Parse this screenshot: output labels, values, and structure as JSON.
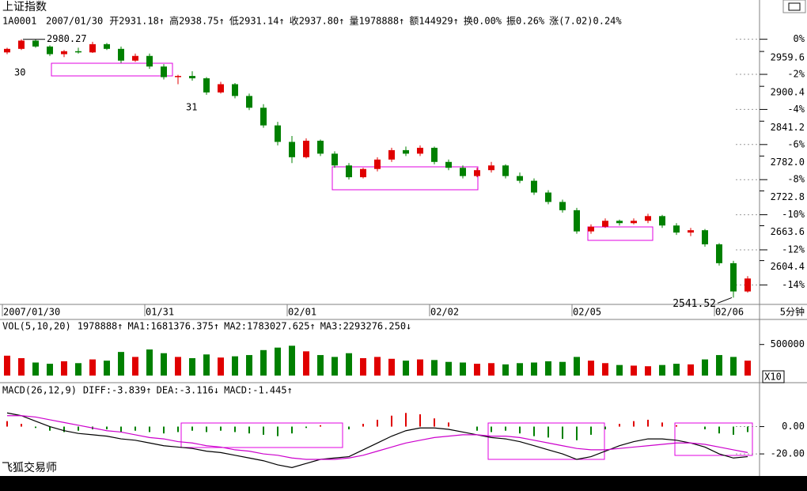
{
  "header": {
    "title": "上证指数",
    "code": "1A0001",
    "date": "2007/01/30",
    "fields": [
      "开2931.18↑",
      "高2938.75↑",
      "低2931.14↑",
      "收2937.80↑",
      "量1978888↑",
      "额144929↑",
      "换0.00%",
      "振0.26%",
      "涨(7.02)0.24%"
    ],
    "footer": "飞狐交易师"
  },
  "chart_data": [
    {
      "type": "candlestick",
      "categories": [
        "2007/01/30",
        null,
        null,
        null,
        null,
        null,
        null,
        null,
        null,
        null,
        "01/31",
        null,
        null,
        null,
        null,
        null,
        null,
        null,
        null,
        null,
        "02/01",
        null,
        null,
        null,
        null,
        null,
        null,
        null,
        null,
        null,
        "02/02",
        null,
        null,
        null,
        null,
        null,
        null,
        null,
        null,
        null,
        "02/05",
        null,
        null,
        null,
        null,
        null,
        null,
        null,
        null,
        null,
        "02/06",
        null,
        null
      ],
      "period": "5分钟",
      "annotations": [
        "30",
        "31"
      ],
      "open": [
        2958,
        2964,
        2978,
        2968,
        2955,
        2960,
        2958,
        2972,
        2964,
        2944,
        2952,
        2934,
        2916,
        2918,
        2914,
        2890,
        2904,
        2884,
        2864,
        2834,
        2806,
        2780,
        2808,
        2786,
        2766,
        2746,
        2760,
        2776,
        2792,
        2786,
        2796,
        2772,
        2762,
        2748,
        2758,
        2766,
        2748,
        2740,
        2720,
        2704,
        2690,
        2654,
        2662,
        2672,
        2668,
        2672,
        2680,
        2664,
        2652,
        2656,
        2632,
        2600,
        2552
      ],
      "high": [
        2966,
        2980.27,
        2980,
        2970,
        2962,
        2966,
        2976,
        2974,
        2968,
        2956,
        2956,
        2938,
        2920,
        2926,
        2916,
        2908,
        2906,
        2888,
        2870,
        2840,
        2816,
        2812,
        2810,
        2790,
        2770,
        2762,
        2780,
        2796,
        2798,
        2800,
        2798,
        2776,
        2766,
        2762,
        2772,
        2768,
        2754,
        2744,
        2724,
        2708,
        2694,
        2666,
        2676,
        2674,
        2676,
        2684,
        2682,
        2668,
        2660,
        2658,
        2634,
        2604,
        2578
      ],
      "low": [
        2955,
        2962,
        2966,
        2952,
        2950,
        2956,
        2957,
        2962,
        2940,
        2942,
        2930,
        2912,
        2904,
        2910,
        2886,
        2888,
        2880,
        2860,
        2830,
        2800,
        2770,
        2778,
        2782,
        2762,
        2742,
        2744,
        2756,
        2772,
        2782,
        2782,
        2768,
        2758,
        2744,
        2746,
        2754,
        2744,
        2736,
        2716,
        2700,
        2686,
        2650,
        2650,
        2660,
        2664,
        2666,
        2668,
        2660,
        2648,
        2646,
        2628,
        2596,
        2541.52,
        2550
      ],
      "close": [
        2964,
        2978,
        2968,
        2955,
        2960,
        2958,
        2972,
        2964,
        2944,
        2952,
        2934,
        2916,
        2918,
        2914,
        2890,
        2904,
        2884,
        2864,
        2834,
        2806,
        2780,
        2808,
        2786,
        2766,
        2746,
        2760,
        2776,
        2792,
        2786,
        2796,
        2772,
        2762,
        2748,
        2758,
        2766,
        2748,
        2740,
        2720,
        2704,
        2690,
        2654,
        2662,
        2672,
        2668,
        2672,
        2680,
        2664,
        2652,
        2656,
        2632,
        2600,
        2552,
        2574
      ],
      "up_color": "#e00000",
      "down_color": "#008000",
      "ylim": [
        2530,
        3000
      ],
      "yticks": [
        2959.6,
        2900.4,
        2841.2,
        {
          "value": 2782,
          "label": "2782.0"
        },
        2722.8,
        2663.6,
        2604.4
      ],
      "y2lim": [
        -15.11,
        0.66
      ],
      "y2ticks": [
        {
          "value": 0,
          "label": "0%"
        },
        {
          "value": -2,
          "label": "-2%"
        },
        {
          "value": -4,
          "label": "-4%"
        },
        {
          "value": -6,
          "label": "-6%"
        },
        {
          "value": -8,
          "label": "-8%"
        },
        {
          "value": -10,
          "label": "-10%"
        },
        {
          "value": -12,
          "label": "-12%"
        },
        {
          "value": -14,
          "label": "-14%"
        }
      ]
    },
    {
      "type": "bar",
      "title": "VOL(5,10,20)",
      "indicators": [
        "1978888↑",
        "MA1:1681376.375↑",
        "MA2:1783027.625↑",
        "MA3:2293276.250↓"
      ],
      "unit_label": "X10",
      "values": [
        320000,
        280000,
        210000,
        190000,
        230000,
        200000,
        260000,
        240000,
        380000,
        300000,
        420000,
        360000,
        300000,
        280000,
        340000,
        290000,
        310000,
        330000,
        410000,
        450000,
        480000,
        390000,
        330000,
        300000,
        360000,
        280000,
        300000,
        270000,
        240000,
        260000,
        250000,
        220000,
        210000,
        190000,
        200000,
        180000,
        200000,
        210000,
        230000,
        220000,
        300000,
        240000,
        200000,
        170000,
        160000,
        150000,
        170000,
        190000,
        180000,
        260000,
        330000,
        300000,
        240000
      ],
      "ylim": [
        0,
        700000
      ],
      "yticks": [
        500000
      ]
    },
    {
      "type": "macd",
      "title": "MACD(26,12,9)",
      "indicators": [
        "DIFF:-3.839↑",
        "DEA:-3.116↓",
        "MACD:-1.445↑"
      ],
      "dif_color": "#000000",
      "dea_color": "#cc00cc",
      "macd": [
        4,
        2,
        -1,
        -3,
        -4,
        -3,
        -2,
        -2,
        -4,
        -3,
        -4,
        -5,
        -4,
        -3,
        -4,
        -3,
        -4,
        -5,
        -6,
        -7,
        -5,
        -1,
        1,
        0,
        -2,
        2,
        5,
        8,
        10,
        9,
        6,
        3,
        0,
        -3,
        -4,
        -3,
        -5,
        -7,
        -8,
        -9,
        -10,
        -6,
        -2,
        2,
        4,
        5,
        3,
        1,
        0,
        -2,
        -5,
        -6,
        -4
      ],
      "dif": [
        10,
        8,
        4,
        0,
        -3,
        -5,
        -6,
        -7,
        -9,
        -10,
        -12,
        -14,
        -15,
        -16,
        -18,
        -19,
        -21,
        -23,
        -25,
        -28,
        -30,
        -27,
        -24,
        -23,
        -22,
        -17,
        -12,
        -7,
        -3,
        -1,
        -1,
        -2,
        -4,
        -6,
        -8,
        -9,
        -11,
        -14,
        -17,
        -20,
        -24,
        -22,
        -18,
        -14,
        -11,
        -9,
        -9,
        -10,
        -12,
        -15,
        -20,
        -23,
        -22
      ],
      "dea": [
        8,
        8,
        7,
        5,
        3,
        1,
        -1,
        -3,
        -4,
        -6,
        -8,
        -9,
        -11,
        -12,
        -14,
        -15,
        -17,
        -18,
        -20,
        -21,
        -23,
        -24,
        -24,
        -24,
        -23,
        -21,
        -18,
        -15,
        -12,
        -10,
        -8,
        -7,
        -6,
        -6,
        -7,
        -7,
        -8,
        -10,
        -12,
        -14,
        -16,
        -17,
        -17,
        -16,
        -15,
        -14,
        -13,
        -12,
        -12,
        -13,
        -15,
        -17,
        -19
      ],
      "ylim": [
        -35,
        20
      ],
      "yticks": [
        {
          "value": 0,
          "label": "0.00"
        },
        {
          "value": -20,
          "label": "-20.00"
        }
      ]
    }
  ]
}
